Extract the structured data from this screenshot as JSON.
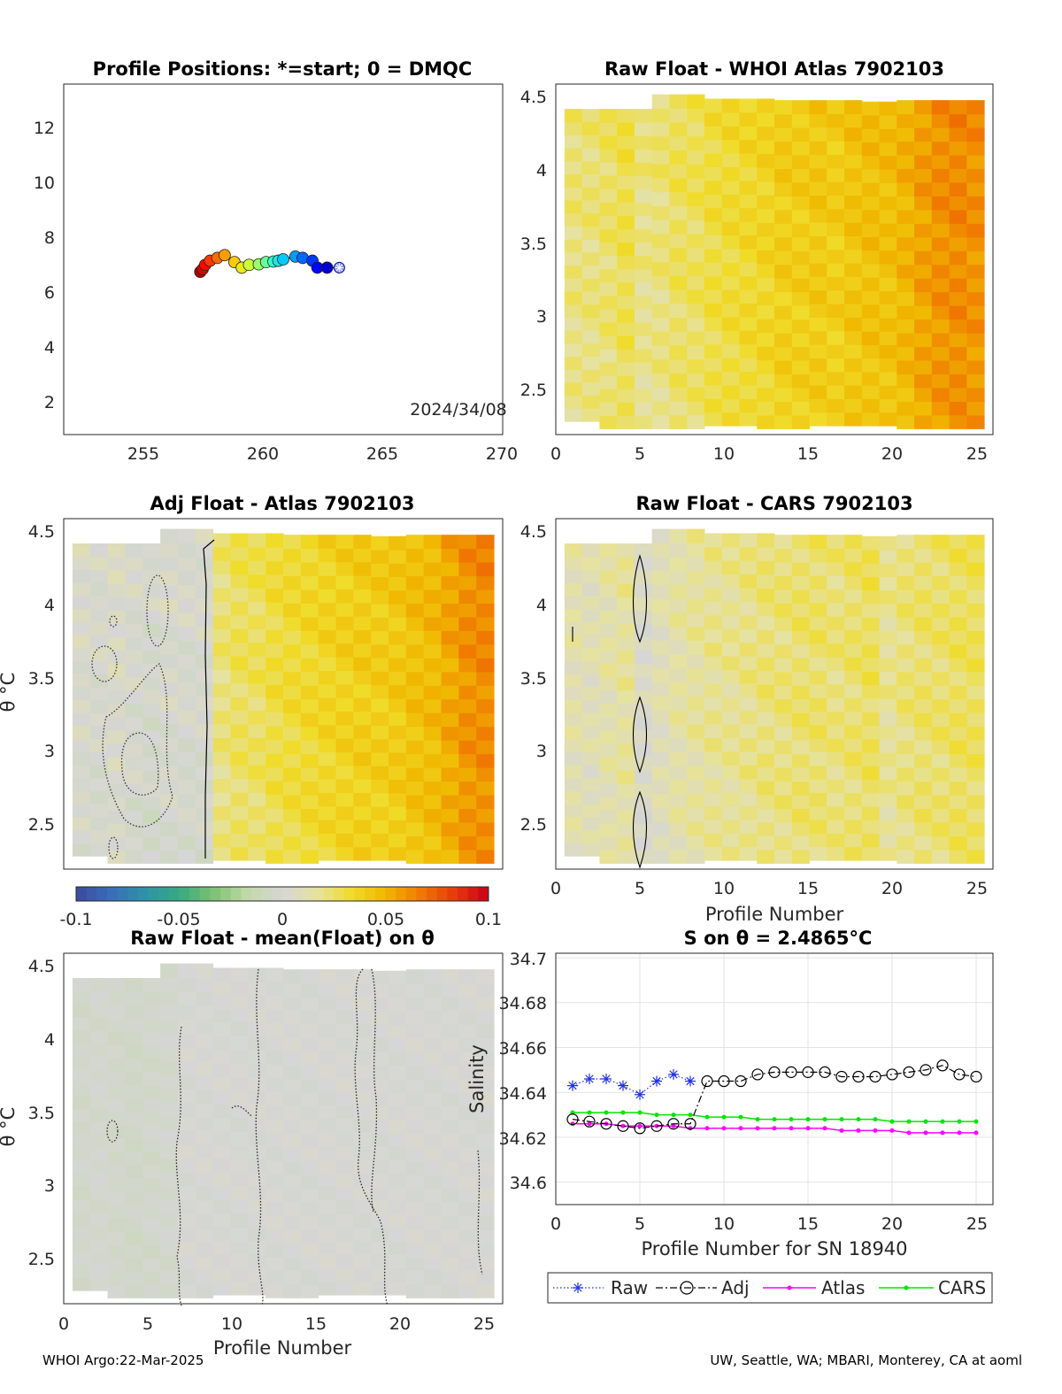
{
  "colors": {
    "raw": "#1f2fe6",
    "adj": "#000000",
    "atlas": "#ff00ff",
    "cars": "#00e600",
    "colormap": [
      "#3b4a9c",
      "#3a6db8",
      "#2f92a8",
      "#37a981",
      "#7cc271",
      "#c4d9a8",
      "#d6d6d6",
      "#e6e2a0",
      "#f0dc2a",
      "#f0b800",
      "#f07a00",
      "#e83a0b",
      "#c8001a"
    ]
  },
  "footer": {
    "left": "WHOI Argo:22-Mar-2025",
    "right": "UW, Seattle, WA; MBARI, Monterey, CA at aoml"
  },
  "panels": {
    "map": {
      "title": "Profile Positions: *=start; 0 = DMQC",
      "date_label": "2024/34/08",
      "xticks": [
        "255",
        "260",
        "265",
        "270"
      ],
      "yticks": [
        "2",
        "4",
        "6",
        "8",
        "10",
        "12"
      ]
    },
    "whoi": {
      "title": "Raw Float - WHOI Atlas  7902103",
      "xticks": [
        "0",
        "5",
        "10",
        "15",
        "20",
        "25"
      ],
      "yticks": [
        "2.5",
        "3",
        "3.5",
        "4",
        "4.5"
      ]
    },
    "adj": {
      "title": "Adj Float - Atlas  7902103",
      "ylabel": "θ °C",
      "yticks": [
        "2.5",
        "3",
        "3.5",
        "4",
        "4.5"
      ]
    },
    "cars": {
      "title": "Raw Float - CARS  7902103",
      "xlabel": "Profile Number",
      "xticks": [
        "0",
        "5",
        "10",
        "15",
        "20",
        "25"
      ],
      "yticks": [
        "2.5",
        "3",
        "3.5",
        "4",
        "4.5"
      ]
    },
    "colorbar": {
      "ticks": [
        "-0.1",
        "-0.05",
        "0",
        "0.05",
        "0.1"
      ]
    },
    "mean": {
      "title": "Raw Float - mean(Float) on θ",
      "ylabel": "θ °C",
      "xlabel": "Profile Number",
      "xticks": [
        "0",
        "5",
        "10",
        "15",
        "20",
        "25"
      ],
      "yticks": [
        "2.5",
        "3",
        "3.5",
        "4",
        "4.5"
      ]
    },
    "salinity": {
      "title": "S on θ = 2.4865°C",
      "ylabel": "Salinity",
      "xlabel": "Profile Number for SN 18940",
      "xticks": [
        "0",
        "5",
        "10",
        "15",
        "20",
        "25"
      ],
      "yticks": [
        "34.6",
        "34.62",
        "34.64",
        "34.66",
        "34.68",
        "34.7"
      ],
      "legend": [
        "Raw",
        "Adj",
        "Atlas",
        "CARS"
      ]
    }
  },
  "chart_data": [
    {
      "type": "scatter",
      "title": "Profile Positions: *=start; 0 = DMQC",
      "xlim": [
        252,
        270
      ],
      "ylim": [
        1,
        13.6
      ],
      "x": [
        263.3,
        262.8,
        262.4,
        262.2,
        261.8,
        261.5,
        261.0,
        260.8,
        260.6,
        260.3,
        260.0,
        259.6,
        259.3,
        259.0,
        258.6,
        258.3,
        258.0,
        257.8,
        257.7,
        257.6
      ],
      "y": [
        7.0,
        7.0,
        7.0,
        7.25,
        7.35,
        7.4,
        7.3,
        7.25,
        7.22,
        7.2,
        7.12,
        7.1,
        7.0,
        7.2,
        7.45,
        7.35,
        7.25,
        7.1,
        6.95,
        6.85
      ]
    },
    {
      "type": "heatmap",
      "title": "Raw Float - WHOI Atlas  7902103",
      "xlim": [
        0,
        25
      ],
      "ylim": [
        2.2,
        4.6
      ],
      "profiles": 24,
      "columns": [
        0.022,
        0.022,
        0.024,
        0.028,
        0.02,
        0.022,
        0.026,
        0.026,
        0.03,
        0.032,
        0.034,
        0.036,
        0.04,
        0.04,
        0.042,
        0.04,
        0.044,
        0.046,
        0.046,
        0.05,
        0.056,
        0.06,
        0.062,
        0.06
      ]
    },
    {
      "type": "heatmap",
      "title": "Adj Float - Atlas  7902103",
      "xlim": [
        0,
        25
      ],
      "ylim": [
        2.2,
        4.6
      ],
      "profiles": 24,
      "columns": [
        0.002,
        0.0,
        0.003,
        0.0,
        -0.002,
        0.001,
        0.0,
        0.0,
        0.022,
        0.026,
        0.026,
        0.03,
        0.032,
        0.034,
        0.036,
        0.038,
        0.04,
        0.04,
        0.042,
        0.046,
        0.048,
        0.054,
        0.06,
        0.062
      ]
    },
    {
      "type": "heatmap",
      "title": "Raw Float - CARS  7902103",
      "xlim": [
        0,
        25
      ],
      "ylim": [
        2.2,
        4.6
      ],
      "profiles": 24,
      "columns": [
        0.012,
        0.01,
        0.013,
        0.016,
        0.004,
        0.01,
        0.014,
        0.016,
        0.018,
        0.018,
        0.02,
        0.022,
        0.022,
        0.024,
        0.024,
        0.022,
        0.024,
        0.026,
        0.018,
        0.022,
        0.024,
        0.024,
        0.026,
        0.026
      ]
    },
    {
      "type": "heatmap",
      "title": "Raw Float - mean(Float) on θ",
      "xlim": [
        0,
        25
      ],
      "ylim": [
        2.2,
        4.6
      ],
      "profiles": 24,
      "columns": [
        -0.004,
        -0.003,
        -0.004,
        -0.005,
        -0.004,
        -0.003,
        0.0,
        0.0,
        0.0,
        0.0,
        0.0,
        0.0,
        0.0,
        0.0,
        0.0,
        0.0,
        0.0,
        0.0,
        0.0,
        0.0,
        0.0,
        0.0,
        0.0,
        0.0
      ]
    },
    {
      "type": "line",
      "title": "S on θ = 2.4865°C",
      "xlabel": "Profile Number for SN 18940",
      "ylabel": "Salinity",
      "xlim": [
        0,
        26
      ],
      "ylim": [
        34.59,
        34.702
      ],
      "series": [
        {
          "name": "Raw",
          "x": [
            1,
            2,
            3,
            4,
            5,
            6,
            7,
            8
          ],
          "values": [
            34.643,
            34.646,
            34.646,
            34.643,
            34.639,
            34.645,
            34.648,
            34.645
          ]
        },
        {
          "name": "Adj",
          "x": [
            1,
            2,
            3,
            4,
            5,
            6,
            7,
            8,
            9,
            10,
            11,
            12,
            13,
            14,
            15,
            16,
            17,
            18,
            19,
            20,
            21,
            22,
            23,
            24,
            25
          ],
          "values": [
            34.628,
            34.627,
            34.626,
            34.625,
            34.624,
            34.625,
            34.626,
            34.626,
            34.645,
            34.645,
            34.645,
            34.648,
            34.649,
            34.649,
            34.649,
            34.649,
            34.647,
            34.647,
            34.647,
            34.648,
            34.649,
            34.65,
            34.652,
            34.648,
            34.647
          ]
        },
        {
          "name": "Atlas",
          "x": [
            1,
            2,
            3,
            4,
            5,
            6,
            7,
            8,
            9,
            10,
            11,
            12,
            13,
            14,
            15,
            16,
            17,
            18,
            19,
            20,
            21,
            22,
            23,
            24,
            25
          ],
          "values": [
            34.626,
            34.626,
            34.626,
            34.625,
            34.625,
            34.625,
            34.625,
            34.624,
            34.624,
            34.624,
            34.624,
            34.624,
            34.624,
            34.624,
            34.624,
            34.624,
            34.623,
            34.623,
            34.623,
            34.623,
            34.622,
            34.622,
            34.622,
            34.622,
            34.622
          ]
        },
        {
          "name": "CARS",
          "x": [
            1,
            2,
            3,
            4,
            5,
            6,
            7,
            8,
            9,
            10,
            11,
            12,
            13,
            14,
            15,
            16,
            17,
            18,
            19,
            20,
            21,
            22,
            23,
            24,
            25
          ],
          "values": [
            34.631,
            34.631,
            34.631,
            34.631,
            34.631,
            34.63,
            34.63,
            34.63,
            34.629,
            34.629,
            34.629,
            34.628,
            34.628,
            34.628,
            34.628,
            34.628,
            34.628,
            34.628,
            34.628,
            34.627,
            34.627,
            34.627,
            34.627,
            34.627,
            34.627
          ]
        }
      ]
    }
  ]
}
